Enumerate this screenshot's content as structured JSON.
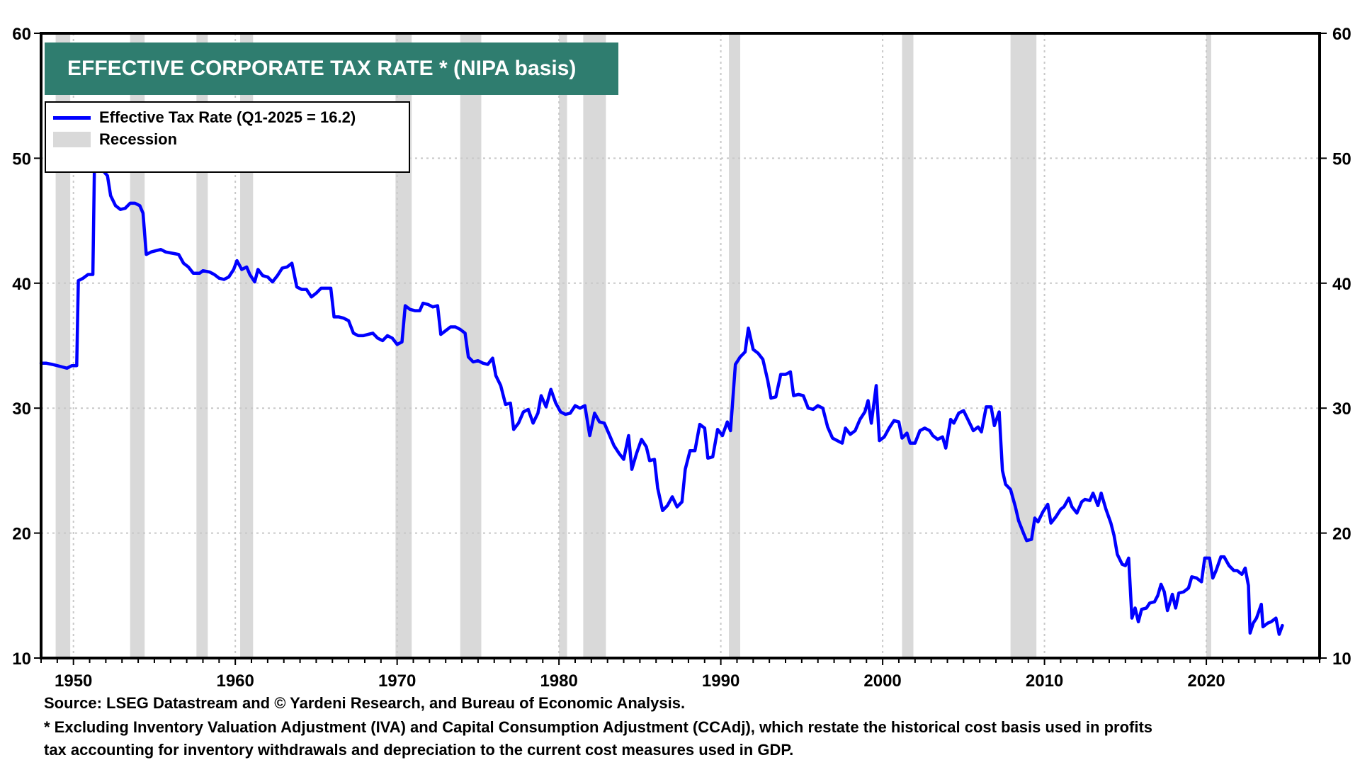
{
  "chart_data": {
    "type": "line",
    "title": "EFFECTIVE CORPORATE TAX RATE * (NIPA basis)",
    "xlabel": "",
    "ylabel": "",
    "xlim": [
      1948,
      2027
    ],
    "ylim": [
      10,
      60
    ],
    "y_ticks": [
      10,
      20,
      30,
      40,
      50,
      60
    ],
    "x_ticks": [
      1950,
      1960,
      1970,
      1980,
      1990,
      2000,
      2010,
      2020
    ],
    "grid": true,
    "legend_position": "top-left",
    "legend": [
      {
        "label": "Effective Tax Rate  (Q1-2025 = 16.2)",
        "kind": "line",
        "color": "#0000ff"
      },
      {
        "label": "Recession",
        "kind": "band",
        "color": "#d9d9d9"
      }
    ],
    "series": [
      {
        "name": "Effective Tax Rate",
        "color": "#0000ff",
        "points": [
          [
            1948.0,
            33.6
          ],
          [
            1948.3,
            33.6
          ],
          [
            1948.7,
            33.5
          ],
          [
            1949.0,
            33.4
          ],
          [
            1949.3,
            33.3
          ],
          [
            1949.6,
            33.2
          ],
          [
            1949.9,
            33.4
          ],
          [
            1950.2,
            33.4
          ],
          [
            1950.3,
            40.2
          ],
          [
            1950.6,
            40.4
          ],
          [
            1950.9,
            40.7
          ],
          [
            1951.2,
            40.7
          ],
          [
            1951.3,
            49.7
          ],
          [
            1951.7,
            49.2
          ],
          [
            1952.1,
            48.6
          ],
          [
            1952.3,
            47.0
          ],
          [
            1952.6,
            46.2
          ],
          [
            1952.9,
            45.9
          ],
          [
            1953.2,
            46.0
          ],
          [
            1953.5,
            46.4
          ],
          [
            1953.8,
            46.4
          ],
          [
            1954.1,
            46.2
          ],
          [
            1954.3,
            45.6
          ],
          [
            1954.5,
            42.3
          ],
          [
            1954.8,
            42.5
          ],
          [
            1955.1,
            42.6
          ],
          [
            1955.4,
            42.7
          ],
          [
            1955.7,
            42.5
          ],
          [
            1956.1,
            42.4
          ],
          [
            1956.5,
            42.3
          ],
          [
            1956.8,
            41.6
          ],
          [
            1957.1,
            41.3
          ],
          [
            1957.4,
            40.8
          ],
          [
            1957.8,
            40.8
          ],
          [
            1958.0,
            41.0
          ],
          [
            1958.4,
            40.9
          ],
          [
            1958.7,
            40.7
          ],
          [
            1959.0,
            40.4
          ],
          [
            1959.3,
            40.3
          ],
          [
            1959.6,
            40.5
          ],
          [
            1959.9,
            41.1
          ],
          [
            1960.1,
            41.8
          ],
          [
            1960.4,
            41.1
          ],
          [
            1960.7,
            41.3
          ],
          [
            1960.9,
            40.7
          ],
          [
            1961.2,
            40.1
          ],
          [
            1961.4,
            41.1
          ],
          [
            1961.7,
            40.6
          ],
          [
            1962.0,
            40.5
          ],
          [
            1962.3,
            40.1
          ],
          [
            1962.6,
            40.6
          ],
          [
            1962.9,
            41.2
          ],
          [
            1963.2,
            41.3
          ],
          [
            1963.5,
            41.6
          ],
          [
            1963.8,
            39.7
          ],
          [
            1964.1,
            39.5
          ],
          [
            1964.4,
            39.5
          ],
          [
            1964.7,
            38.9
          ],
          [
            1965.0,
            39.2
          ],
          [
            1965.3,
            39.6
          ],
          [
            1965.6,
            39.6
          ],
          [
            1965.9,
            39.6
          ],
          [
            1966.1,
            37.3
          ],
          [
            1966.4,
            37.3
          ],
          [
            1966.7,
            37.2
          ],
          [
            1967.0,
            37.0
          ],
          [
            1967.3,
            36.0
          ],
          [
            1967.6,
            35.8
          ],
          [
            1967.9,
            35.8
          ],
          [
            1968.2,
            35.9
          ],
          [
            1968.5,
            36.0
          ],
          [
            1968.8,
            35.6
          ],
          [
            1969.1,
            35.4
          ],
          [
            1969.4,
            35.8
          ],
          [
            1969.7,
            35.6
          ],
          [
            1970.0,
            35.1
          ],
          [
            1970.3,
            35.3
          ],
          [
            1970.5,
            38.2
          ],
          [
            1970.8,
            37.9
          ],
          [
            1971.1,
            37.8
          ],
          [
            1971.4,
            37.8
          ],
          [
            1971.6,
            38.4
          ],
          [
            1971.9,
            38.3
          ],
          [
            1972.2,
            38.1
          ],
          [
            1972.5,
            38.2
          ],
          [
            1972.7,
            35.9
          ],
          [
            1973.0,
            36.2
          ],
          [
            1973.3,
            36.5
          ],
          [
            1973.6,
            36.5
          ],
          [
            1973.9,
            36.3
          ],
          [
            1974.2,
            36.0
          ],
          [
            1974.4,
            34.1
          ],
          [
            1974.7,
            33.7
          ],
          [
            1975.0,
            33.8
          ],
          [
            1975.3,
            33.6
          ],
          [
            1975.6,
            33.5
          ],
          [
            1975.9,
            34.0
          ],
          [
            1976.1,
            32.6
          ],
          [
            1976.4,
            31.8
          ],
          [
            1976.7,
            30.3
          ],
          [
            1977.0,
            30.4
          ],
          [
            1977.2,
            28.3
          ],
          [
            1977.5,
            28.8
          ],
          [
            1977.8,
            29.7
          ],
          [
            1978.1,
            29.9
          ],
          [
            1978.4,
            28.8
          ],
          [
            1978.7,
            29.6
          ],
          [
            1978.9,
            31.0
          ],
          [
            1979.2,
            30.1
          ],
          [
            1979.5,
            31.5
          ],
          [
            1979.8,
            30.4
          ],
          [
            1980.1,
            29.7
          ],
          [
            1980.4,
            29.5
          ],
          [
            1980.7,
            29.6
          ],
          [
            1981.0,
            30.2
          ],
          [
            1981.3,
            30.0
          ],
          [
            1981.6,
            30.2
          ],
          [
            1981.9,
            27.8
          ],
          [
            1982.2,
            29.6
          ],
          [
            1982.5,
            28.9
          ],
          [
            1982.8,
            28.8
          ],
          [
            1983.1,
            27.9
          ],
          [
            1983.4,
            27.0
          ],
          [
            1983.7,
            26.4
          ],
          [
            1984.0,
            25.9
          ],
          [
            1984.3,
            27.8
          ],
          [
            1984.5,
            25.1
          ],
          [
            1984.8,
            26.4
          ],
          [
            1985.1,
            27.5
          ],
          [
            1985.4,
            26.9
          ],
          [
            1985.6,
            25.8
          ],
          [
            1985.9,
            25.9
          ],
          [
            1986.1,
            23.6
          ],
          [
            1986.4,
            21.8
          ],
          [
            1986.7,
            22.2
          ],
          [
            1987.0,
            22.9
          ],
          [
            1987.3,
            22.1
          ],
          [
            1987.6,
            22.5
          ],
          [
            1987.8,
            25.1
          ],
          [
            1988.1,
            26.6
          ],
          [
            1988.4,
            26.6
          ],
          [
            1988.7,
            28.7
          ],
          [
            1989.0,
            28.4
          ],
          [
            1989.2,
            26.0
          ],
          [
            1989.5,
            26.1
          ],
          [
            1989.8,
            28.3
          ],
          [
            1990.1,
            27.8
          ],
          [
            1990.4,
            28.9
          ],
          [
            1990.6,
            28.2
          ],
          [
            1990.9,
            33.5
          ],
          [
            1991.2,
            34.1
          ],
          [
            1991.5,
            34.5
          ],
          [
            1991.7,
            36.4
          ],
          [
            1992.0,
            34.7
          ],
          [
            1992.3,
            34.4
          ],
          [
            1992.6,
            33.9
          ],
          [
            1992.9,
            32.2
          ],
          [
            1993.1,
            30.8
          ],
          [
            1993.4,
            30.9
          ],
          [
            1993.7,
            32.7
          ],
          [
            1994.0,
            32.7
          ],
          [
            1994.3,
            32.9
          ],
          [
            1994.5,
            31.0
          ],
          [
            1994.8,
            31.1
          ],
          [
            1995.1,
            31.0
          ],
          [
            1995.4,
            30.0
          ],
          [
            1995.7,
            29.9
          ],
          [
            1996.0,
            30.2
          ],
          [
            1996.3,
            30.0
          ],
          [
            1996.6,
            28.5
          ],
          [
            1996.9,
            27.6
          ],
          [
            1997.2,
            27.4
          ],
          [
            1997.5,
            27.2
          ],
          [
            1997.7,
            28.4
          ],
          [
            1998.0,
            27.9
          ],
          [
            1998.3,
            28.2
          ],
          [
            1998.6,
            29.1
          ],
          [
            1998.9,
            29.7
          ],
          [
            1999.1,
            30.6
          ],
          [
            1999.3,
            28.8
          ],
          [
            1999.6,
            31.8
          ],
          [
            1999.8,
            27.4
          ],
          [
            2000.1,
            27.7
          ],
          [
            2000.4,
            28.4
          ],
          [
            2000.7,
            29.0
          ],
          [
            2001.0,
            28.9
          ],
          [
            2001.2,
            27.6
          ],
          [
            2001.5,
            28.0
          ],
          [
            2001.7,
            27.2
          ],
          [
            2002.0,
            27.2
          ],
          [
            2002.3,
            28.2
          ],
          [
            2002.6,
            28.4
          ],
          [
            2002.9,
            28.2
          ],
          [
            2003.1,
            27.8
          ],
          [
            2003.4,
            27.5
          ],
          [
            2003.7,
            27.7
          ],
          [
            2003.9,
            26.8
          ],
          [
            2004.2,
            29.1
          ],
          [
            2004.4,
            28.8
          ],
          [
            2004.7,
            29.6
          ],
          [
            2005.0,
            29.8
          ],
          [
            2005.3,
            29.0
          ],
          [
            2005.6,
            28.2
          ],
          [
            2005.9,
            28.5
          ],
          [
            2006.1,
            28.1
          ],
          [
            2006.4,
            30.1
          ],
          [
            2006.7,
            30.1
          ],
          [
            2006.9,
            28.6
          ],
          [
            2007.2,
            29.7
          ],
          [
            2007.4,
            25.0
          ],
          [
            2007.6,
            23.9
          ],
          [
            2007.9,
            23.5
          ],
          [
            2008.2,
            22.1
          ],
          [
            2008.4,
            21.0
          ],
          [
            2008.7,
            20.0
          ],
          [
            2008.9,
            19.4
          ],
          [
            2009.2,
            19.5
          ],
          [
            2009.4,
            21.2
          ],
          [
            2009.6,
            20.9
          ],
          [
            2009.9,
            21.7
          ],
          [
            2010.2,
            22.3
          ],
          [
            2010.4,
            20.8
          ],
          [
            2010.7,
            21.3
          ],
          [
            2011.0,
            21.9
          ],
          [
            2011.2,
            22.1
          ],
          [
            2011.5,
            22.8
          ],
          [
            2011.7,
            22.1
          ],
          [
            2012.0,
            21.6
          ],
          [
            2012.3,
            22.5
          ],
          [
            2012.5,
            22.7
          ],
          [
            2012.8,
            22.6
          ],
          [
            2013.0,
            23.2
          ],
          [
            2013.3,
            22.2
          ],
          [
            2013.5,
            23.2
          ],
          [
            2013.8,
            21.9
          ],
          [
            2014.1,
            20.8
          ],
          [
            2014.3,
            19.8
          ],
          [
            2014.5,
            18.3
          ],
          [
            2014.8,
            17.5
          ],
          [
            2015.0,
            17.4
          ],
          [
            2015.2,
            18.0
          ],
          [
            2015.4,
            13.2
          ],
          [
            2015.6,
            14.0
          ],
          [
            2015.8,
            12.9
          ],
          [
            2016.0,
            13.9
          ],
          [
            2016.3,
            14.0
          ],
          [
            2016.5,
            14.4
          ],
          [
            2016.8,
            14.5
          ],
          [
            2017.0,
            15.0
          ],
          [
            2017.2,
            15.9
          ],
          [
            2017.4,
            15.3
          ],
          [
            2017.6,
            13.8
          ],
          [
            2017.9,
            15.1
          ],
          [
            2018.1,
            14.0
          ],
          [
            2018.3,
            15.2
          ],
          [
            2018.6,
            15.3
          ],
          [
            2018.9,
            15.6
          ],
          [
            2019.1,
            16.5
          ],
          [
            2019.4,
            16.4
          ],
          [
            2019.7,
            16.1
          ],
          [
            2019.9,
            18.0
          ],
          [
            2020.2,
            18.0
          ],
          [
            2020.4,
            16.4
          ],
          [
            2020.6,
            17.0
          ],
          [
            2020.9,
            18.1
          ],
          [
            2021.1,
            18.1
          ],
          [
            2021.4,
            17.4
          ],
          [
            2021.7,
            17.0
          ],
          [
            2021.9,
            17.0
          ],
          [
            2022.2,
            16.7
          ],
          [
            2022.4,
            17.2
          ],
          [
            2022.6,
            15.8
          ],
          [
            2022.7,
            12.0
          ],
          [
            2022.9,
            12.8
          ],
          [
            2023.1,
            13.2
          ],
          [
            2023.4,
            14.3
          ],
          [
            2023.5,
            12.5
          ],
          [
            2023.8,
            12.8
          ],
          [
            2024.0,
            12.9
          ],
          [
            2024.3,
            13.2
          ],
          [
            2024.5,
            11.9
          ],
          [
            2024.7,
            12.6
          ]
        ]
      }
    ],
    "recessions": [
      [
        1948.9,
        1949.8
      ],
      [
        1953.5,
        1954.4
      ],
      [
        1957.6,
        1958.3
      ],
      [
        1960.3,
        1961.1
      ],
      [
        1969.9,
        1970.9
      ],
      [
        1973.9,
        1975.2
      ],
      [
        1980.0,
        1980.5
      ],
      [
        1981.5,
        1982.9
      ],
      [
        1990.5,
        1991.2
      ],
      [
        2001.2,
        2001.9
      ],
      [
        2007.9,
        2009.5
      ],
      [
        2020.0,
        2020.3
      ]
    ]
  },
  "title": "EFFECTIVE CORPORATE TAX RATE * (NIPA basis)",
  "legend": {
    "series_label": "Effective Tax Rate  (Q1-2025 = 16.2)",
    "recession_label": "Recession"
  },
  "footnotes": {
    "source": "Source: LSEG Datastream and © Yardeni Research, and Bureau of Economic Analysis.",
    "note_line1": "* Excluding Inventory Valuation Adjustment (IVA) and Capital Consumption Adjustment (CCAdj), which restate the historical cost basis used in profits",
    "note_line2": "tax accounting for inventory withdrawals and depreciation to the current cost measures used in GDP."
  }
}
